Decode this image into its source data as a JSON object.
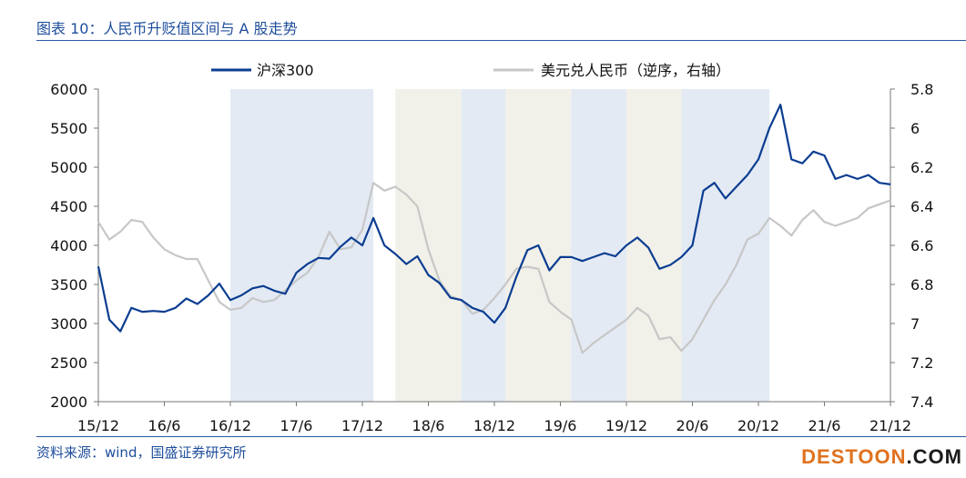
{
  "header": {
    "title": "图表 10：人民币升贬值区间与 A 股走势"
  },
  "footer": {
    "source": "资料来源：wind，国盛证券研究所"
  },
  "watermark": {
    "part1": "DESTOON",
    "part2": ".COM"
  },
  "colors": {
    "series_index": "#0b3d91",
    "series_fx": "#c7c7c7",
    "band_blue": "#e3eaf4",
    "band_beige": "#f1f0e9",
    "title_blue": "#1f4e9c",
    "wm_orange": "#e0721f"
  },
  "chart_data": {
    "type": "line",
    "title": "",
    "xlabel": "",
    "ylabel_left": "",
    "ylabel_right": "",
    "x_ticks": [
      "15/12",
      "16/6",
      "16/12",
      "17/6",
      "17/12",
      "18/6",
      "18/12",
      "19/6",
      "19/12",
      "20/6",
      "20/12",
      "21/6",
      "21/12"
    ],
    "x_range": [
      "2015-12",
      "2021-12"
    ],
    "y_left": {
      "min": 2000,
      "max": 6000,
      "ticks": [
        2000,
        2500,
        3000,
        3500,
        4000,
        4500,
        5000,
        5500,
        6000
      ]
    },
    "y_right": {
      "min": 5.8,
      "max": 7.4,
      "inverted": true,
      "ticks": [
        "5.8",
        "6",
        "6.2",
        "6.4",
        "6.6",
        "6.8",
        "7",
        "7.2",
        "7.4"
      ]
    },
    "legend_position": "top",
    "grid": false,
    "shaded_periods": [
      {
        "start": "2016-12",
        "end": "2018-01",
        "color": "blue"
      },
      {
        "start": "2018-03",
        "end": "2018-09",
        "color": "beige"
      },
      {
        "start": "2018-09",
        "end": "2019-01",
        "color": "blue"
      },
      {
        "start": "2019-01",
        "end": "2019-07",
        "color": "beige"
      },
      {
        "start": "2019-07",
        "end": "2019-12",
        "color": "blue"
      },
      {
        "start": "2019-12",
        "end": "2020-05",
        "color": "beige"
      },
      {
        "start": "2020-05",
        "end": "2021-01",
        "color": "blue"
      }
    ],
    "series": [
      {
        "name": "沪深300",
        "axis": "left",
        "x": [
          "2015-12",
          "2016-01",
          "2016-02",
          "2016-03",
          "2016-04",
          "2016-05",
          "2016-06",
          "2016-07",
          "2016-08",
          "2016-09",
          "2016-10",
          "2016-11",
          "2016-12",
          "2017-01",
          "2017-02",
          "2017-03",
          "2017-04",
          "2017-05",
          "2017-06",
          "2017-07",
          "2017-08",
          "2017-09",
          "2017-10",
          "2017-11",
          "2017-12",
          "2018-01",
          "2018-02",
          "2018-03",
          "2018-04",
          "2018-05",
          "2018-06",
          "2018-07",
          "2018-08",
          "2018-09",
          "2018-10",
          "2018-11",
          "2018-12",
          "2019-01",
          "2019-02",
          "2019-03",
          "2019-04",
          "2019-05",
          "2019-06",
          "2019-07",
          "2019-08",
          "2019-09",
          "2019-10",
          "2019-11",
          "2019-12",
          "2020-01",
          "2020-02",
          "2020-03",
          "2020-04",
          "2020-05",
          "2020-06",
          "2020-07",
          "2020-08",
          "2020-09",
          "2020-10",
          "2020-11",
          "2020-12",
          "2021-01",
          "2021-02",
          "2021-03",
          "2021-04",
          "2021-05",
          "2021-06",
          "2021-07",
          "2021-08",
          "2021-09",
          "2021-10",
          "2021-11",
          "2021-12"
        ],
        "values": [
          3730,
          3050,
          2900,
          3200,
          3150,
          3160,
          3150,
          3200,
          3320,
          3250,
          3360,
          3510,
          3300,
          3360,
          3450,
          3480,
          3420,
          3380,
          3650,
          3760,
          3840,
          3830,
          3980,
          4100,
          4000,
          4350,
          4000,
          3890,
          3760,
          3860,
          3620,
          3520,
          3330,
          3300,
          3200,
          3150,
          3010,
          3200,
          3600,
          3940,
          4000,
          3680,
          3850,
          3850,
          3800,
          3850,
          3900,
          3860,
          4000,
          4100,
          3970,
          3700,
          3750,
          3850,
          4000,
          4700,
          4800,
          4600,
          4750,
          4900,
          5100,
          5500,
          5800,
          5100,
          5050,
          5200,
          5150,
          4850,
          4900,
          4850,
          4900,
          4800,
          4780
        ]
      },
      {
        "name": "美元兑人民币（逆序，右轴）",
        "axis": "right",
        "x": [
          "2015-12",
          "2016-01",
          "2016-02",
          "2016-03",
          "2016-04",
          "2016-05",
          "2016-06",
          "2016-07",
          "2016-08",
          "2016-09",
          "2016-10",
          "2016-11",
          "2016-12",
          "2017-01",
          "2017-02",
          "2017-03",
          "2017-04",
          "2017-05",
          "2017-06",
          "2017-07",
          "2017-08",
          "2017-09",
          "2017-10",
          "2017-11",
          "2017-12",
          "2018-01",
          "2018-02",
          "2018-03",
          "2018-04",
          "2018-05",
          "2018-06",
          "2018-07",
          "2018-08",
          "2018-09",
          "2018-10",
          "2018-11",
          "2018-12",
          "2019-01",
          "2019-02",
          "2019-03",
          "2019-04",
          "2019-05",
          "2019-06",
          "2019-07",
          "2019-08",
          "2019-09",
          "2019-10",
          "2019-11",
          "2019-12",
          "2020-01",
          "2020-02",
          "2020-03",
          "2020-04",
          "2020-05",
          "2020-06",
          "2020-07",
          "2020-08",
          "2020-09",
          "2020-10",
          "2020-11",
          "2020-12",
          "2021-01",
          "2021-02",
          "2021-03",
          "2021-04",
          "2021-05",
          "2021-06",
          "2021-07",
          "2021-08",
          "2021-09",
          "2021-10",
          "2021-11",
          "2021-12"
        ],
        "values": [
          6.48,
          6.57,
          6.53,
          6.47,
          6.48,
          6.56,
          6.62,
          6.65,
          6.67,
          6.67,
          6.78,
          6.89,
          6.93,
          6.92,
          6.87,
          6.89,
          6.88,
          6.83,
          6.78,
          6.74,
          6.66,
          6.53,
          6.62,
          6.61,
          6.52,
          6.28,
          6.32,
          6.3,
          6.34,
          6.4,
          6.62,
          6.78,
          6.86,
          6.88,
          6.95,
          6.93,
          6.87,
          6.8,
          6.72,
          6.71,
          6.72,
          6.89,
          6.94,
          6.98,
          7.15,
          7.1,
          7.06,
          7.02,
          6.98,
          6.92,
          6.96,
          7.08,
          7.07,
          7.14,
          7.08,
          6.98,
          6.88,
          6.8,
          6.7,
          6.57,
          6.54,
          6.46,
          6.5,
          6.55,
          6.47,
          6.42,
          6.48,
          6.5,
          6.48,
          6.46,
          6.41,
          6.39,
          6.37
        ]
      }
    ]
  }
}
